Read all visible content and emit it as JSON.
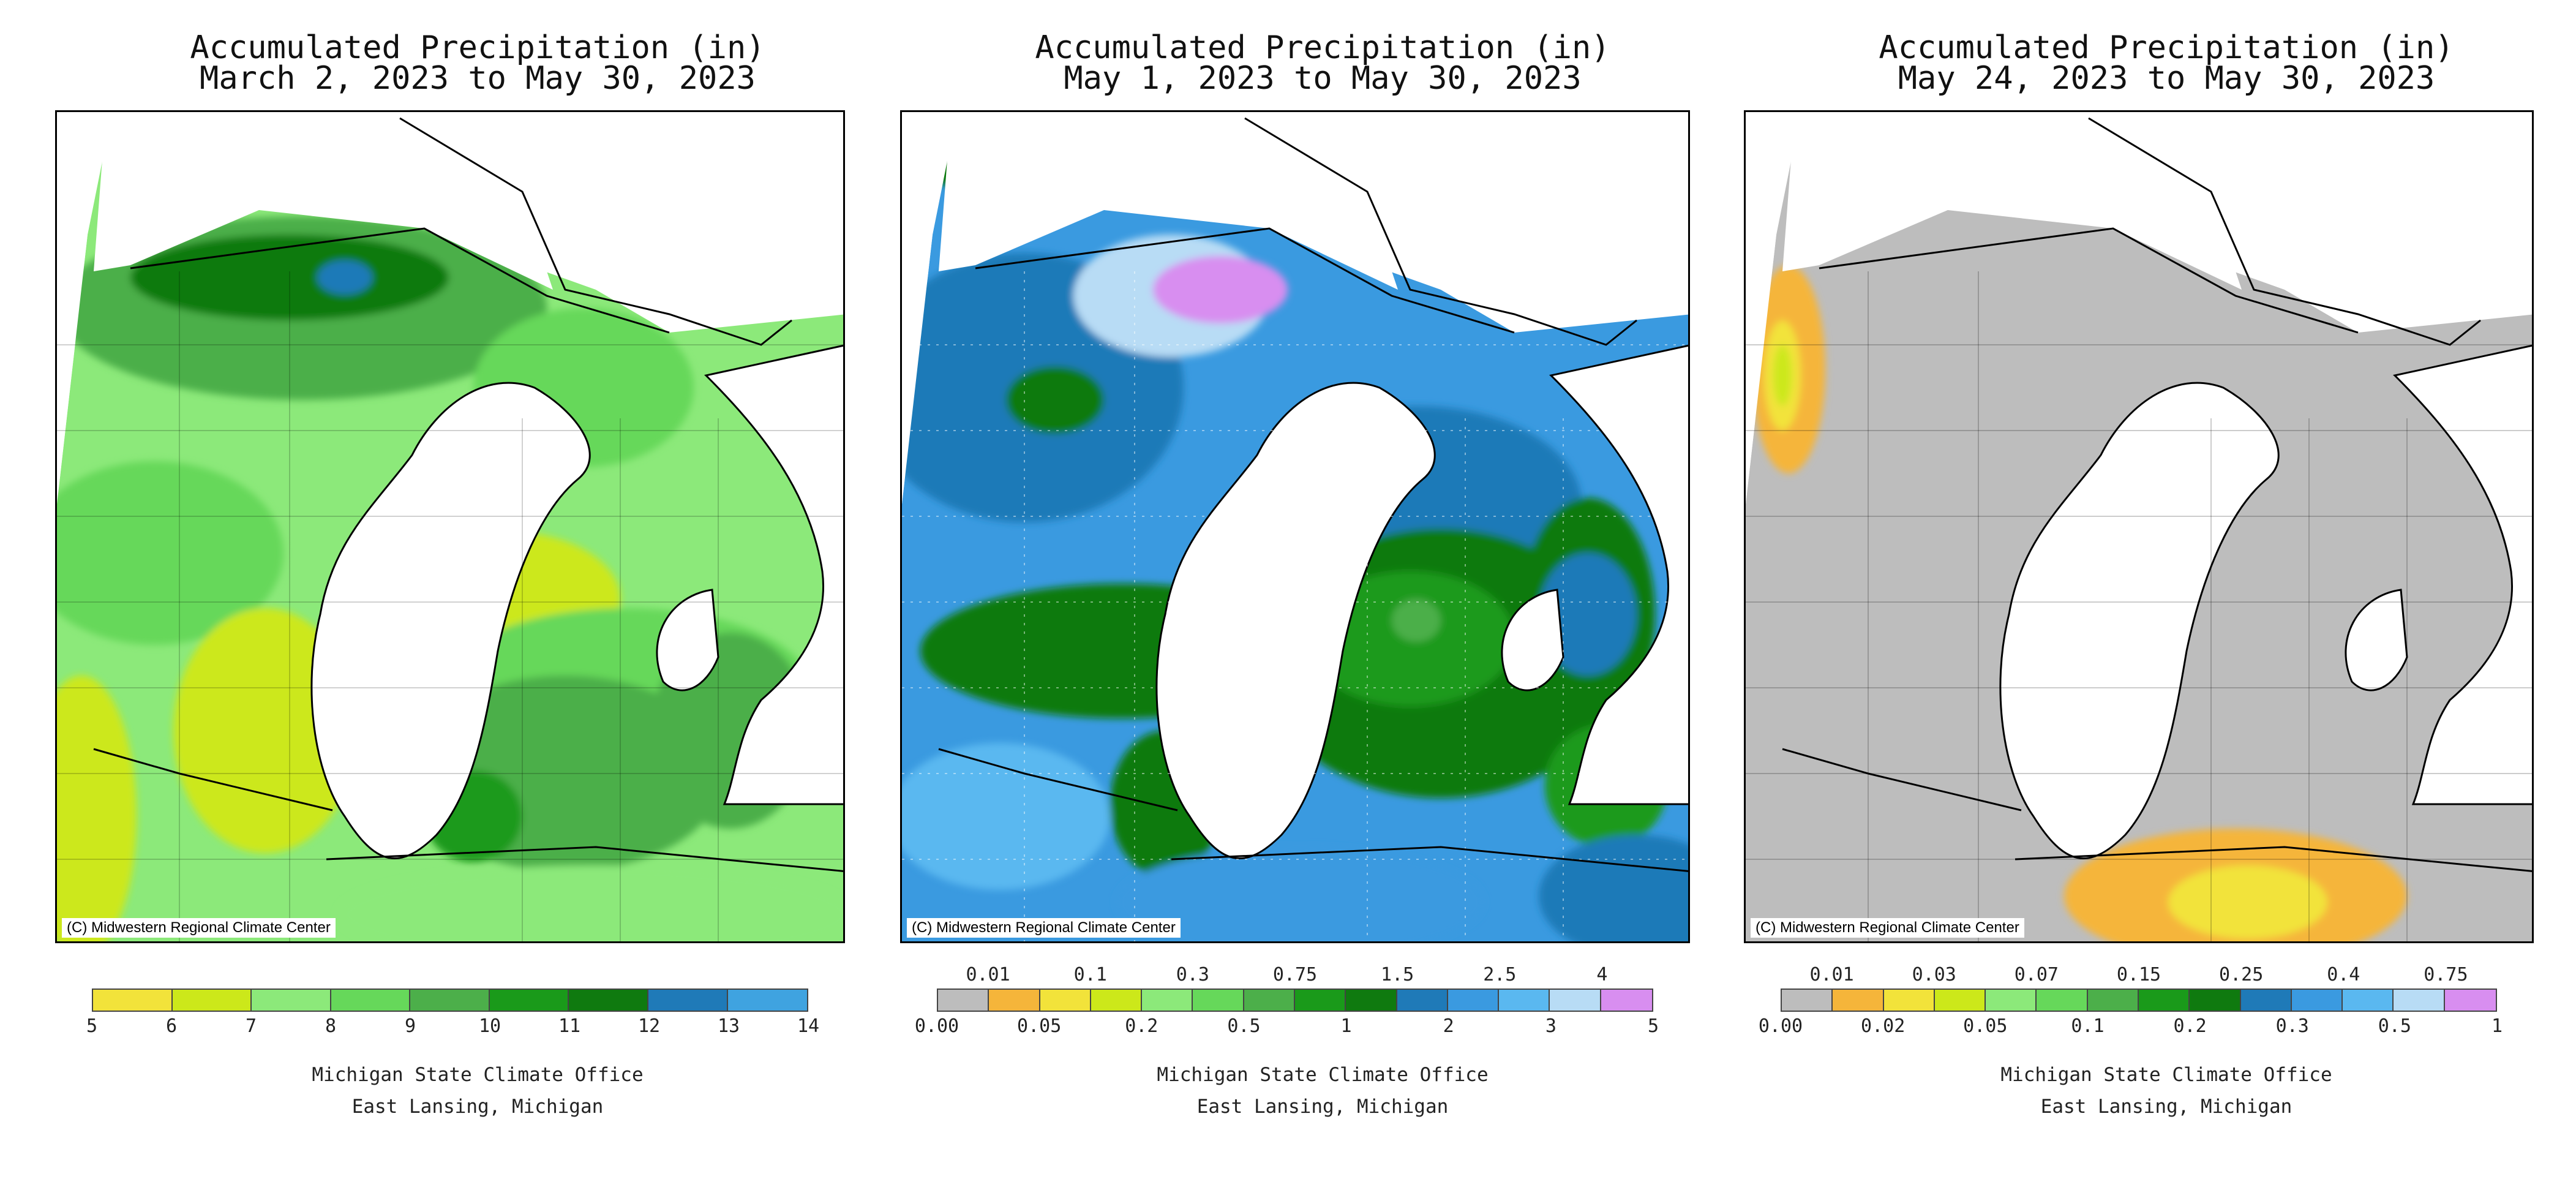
{
  "maps": [
    {
      "title_line1": "Accumulated Precipitation (in)",
      "title_line2": "March 2, 2023 to May 30, 2023",
      "credit": "(C) Midwestern Regional Climate Center",
      "legend": {
        "colors": [
          "#f2e33a",
          "#cce81a",
          "#8ce97a",
          "#66d85a",
          "#4caf4a",
          "#1a9a1a",
          "#0f7a0f",
          "#1f7ab8",
          "#3fa3e0"
        ],
        "labels_below": [
          "5",
          "6",
          "7",
          "8",
          "9",
          "10",
          "11",
          "12",
          "13",
          "14"
        ],
        "labels_above": []
      },
      "footer_line1": "Michigan State Climate Office",
      "footer_line2": "East Lansing, Michigan"
    },
    {
      "title_line1": "Accumulated Precipitation (in)",
      "title_line2": "May 1, 2023 to May 30, 2023",
      "credit": "(C) Midwestern Regional Climate Center",
      "legend": {
        "colors": [
          "#bdbdbd",
          "#f5b53a",
          "#f2e33a",
          "#cce81a",
          "#8ce97a",
          "#66d85a",
          "#4caf4a",
          "#1a9a1a",
          "#0f7a0f",
          "#1f7ab8",
          "#3a9ae0",
          "#5ab8f0",
          "#b8dcf5",
          "#d88ef0"
        ],
        "labels_below": [
          "0.00",
          "0.05",
          "0.2",
          "0.5",
          "1",
          "2",
          "3",
          "5"
        ],
        "labels_above": [
          "0.01",
          "0.1",
          "0.3",
          "0.75",
          "1.5",
          "2.5",
          "4"
        ]
      },
      "footer_line1": "Michigan State Climate Office",
      "footer_line2": "East Lansing, Michigan"
    },
    {
      "title_line1": "Accumulated Precipitation (in)",
      "title_line2": "May 24, 2023 to May 30, 2023",
      "credit": "(C) Midwestern Regional Climate Center",
      "legend": {
        "colors": [
          "#bdbdbd",
          "#f5b53a",
          "#f2e33a",
          "#cce81a",
          "#8ce97a",
          "#66d85a",
          "#4caf4a",
          "#1a9a1a",
          "#0f7a0f",
          "#1f7ab8",
          "#3a9ae0",
          "#5ab8f0",
          "#b8dcf5",
          "#d88ef0"
        ],
        "labels_below": [
          "0.00",
          "0.02",
          "0.05",
          "0.1",
          "0.2",
          "0.3",
          "0.5",
          "1"
        ],
        "labels_above": [
          "0.01",
          "0.03",
          "0.07",
          "0.15",
          "0.25",
          "0.4",
          "0.75"
        ]
      },
      "footer_line1": "Michigan State Climate Office",
      "footer_line2": "East Lansing, Michigan"
    }
  ]
}
